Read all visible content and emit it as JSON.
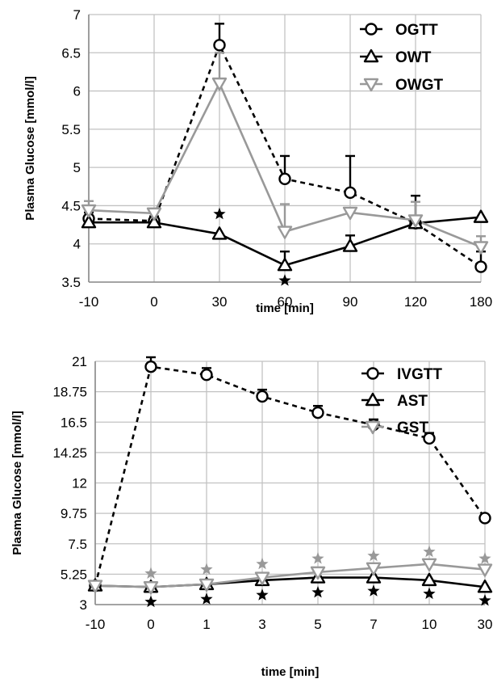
{
  "chart_data": [
    {
      "type": "line",
      "xlabel": "time [min]",
      "ylabel": "Plasma Glucose [mmol/l]",
      "categories": [
        "-10",
        "0",
        "30",
        "60",
        "90",
        "120",
        "180"
      ],
      "ylim": [
        3.5,
        7
      ],
      "yticks": [
        "3.5",
        "4",
        "4.5",
        "5",
        "5.5",
        "6",
        "6.5",
        "7"
      ],
      "grid": true,
      "legend_position": "top-right",
      "series": [
        {
          "name": "OGTT",
          "marker": "circle",
          "color": "#000000",
          "dash": "dashed",
          "values": [
            4.33,
            4.3,
            6.6,
            4.85,
            4.67,
            4.27,
            3.7
          ],
          "error": [
            0.08,
            0.06,
            0.28,
            0.3,
            0.48,
            0.36,
            0.2
          ]
        },
        {
          "name": "OWT",
          "marker": "triangle-up",
          "color": "#000000",
          "dash": "solid",
          "values": [
            4.28,
            4.28,
            4.13,
            3.72,
            3.97,
            4.27,
            4.35
          ],
          "error": [
            0.08,
            0.04,
            0.0,
            0.18,
            0.14,
            0.0,
            0.0
          ]
        },
        {
          "name": "OWGT",
          "marker": "triangle-down",
          "color": "#999999",
          "dash": "solid",
          "values": [
            4.44,
            4.4,
            6.1,
            4.16,
            4.41,
            4.31,
            3.96
          ],
          "error": [
            0.12,
            0.06,
            0.4,
            0.36,
            0.0,
            0.24,
            0.14
          ]
        }
      ],
      "significance": [
        {
          "x_index": 2,
          "y": 4.39,
          "color": "#000000"
        },
        {
          "x_index": 3,
          "y": 3.52,
          "color": "#000000"
        }
      ]
    },
    {
      "type": "line",
      "xlabel": "time [min]",
      "ylabel": "Plasma Glucose [mmol/l]",
      "categories": [
        "-10",
        "0",
        "1",
        "3",
        "5",
        "7",
        "10",
        "30"
      ],
      "ylim": [
        3,
        21
      ],
      "yticks": [
        "3",
        "5.25",
        "7.5",
        "9.75",
        "12",
        "14.25",
        "16.5",
        "18.75",
        "21"
      ],
      "grid": true,
      "legend_position": "top-right",
      "series": [
        {
          "name": "IVGTT",
          "marker": "circle",
          "color": "#000000",
          "dash": "dashed",
          "values": [
            4.4,
            20.6,
            20.0,
            18.4,
            17.2,
            16.3,
            15.3,
            9.4
          ],
          "error": [
            0.0,
            0.7,
            0.5,
            0.5,
            0.5,
            0.4,
            0.4,
            0.0
          ]
        },
        {
          "name": "AST",
          "marker": "triangle-up",
          "color": "#000000",
          "dash": "solid",
          "values": [
            4.4,
            4.3,
            4.5,
            4.8,
            5.0,
            5.0,
            4.8,
            4.3
          ],
          "error": [
            0.0,
            0.0,
            0.0,
            0.0,
            0.0,
            0.0,
            0.0,
            0.0
          ]
        },
        {
          "name": "GST",
          "marker": "triangle-down",
          "color": "#999999",
          "dash": "solid",
          "values": [
            4.4,
            4.3,
            4.5,
            5.0,
            5.4,
            5.7,
            6.0,
            5.6
          ],
          "error": [
            0.0,
            0.0,
            0.0,
            0.0,
            0.0,
            0.0,
            0.0,
            0.0
          ]
        }
      ],
      "significance": [
        {
          "x_index": 1,
          "y": 5.3,
          "color": "#999999"
        },
        {
          "x_index": 2,
          "y": 5.6,
          "color": "#999999"
        },
        {
          "x_index": 3,
          "y": 6.0,
          "color": "#999999"
        },
        {
          "x_index": 4,
          "y": 6.4,
          "color": "#999999"
        },
        {
          "x_index": 5,
          "y": 6.6,
          "color": "#999999"
        },
        {
          "x_index": 6,
          "y": 6.9,
          "color": "#999999"
        },
        {
          "x_index": 7,
          "y": 6.4,
          "color": "#999999"
        },
        {
          "x_index": 1,
          "y": 3.2,
          "color": "#000000"
        },
        {
          "x_index": 2,
          "y": 3.4,
          "color": "#000000"
        },
        {
          "x_index": 3,
          "y": 3.7,
          "color": "#000000"
        },
        {
          "x_index": 4,
          "y": 3.9,
          "color": "#000000"
        },
        {
          "x_index": 5,
          "y": 4.0,
          "color": "#000000"
        },
        {
          "x_index": 6,
          "y": 3.8,
          "color": "#000000"
        },
        {
          "x_index": 7,
          "y": 3.3,
          "color": "#000000"
        }
      ]
    }
  ]
}
